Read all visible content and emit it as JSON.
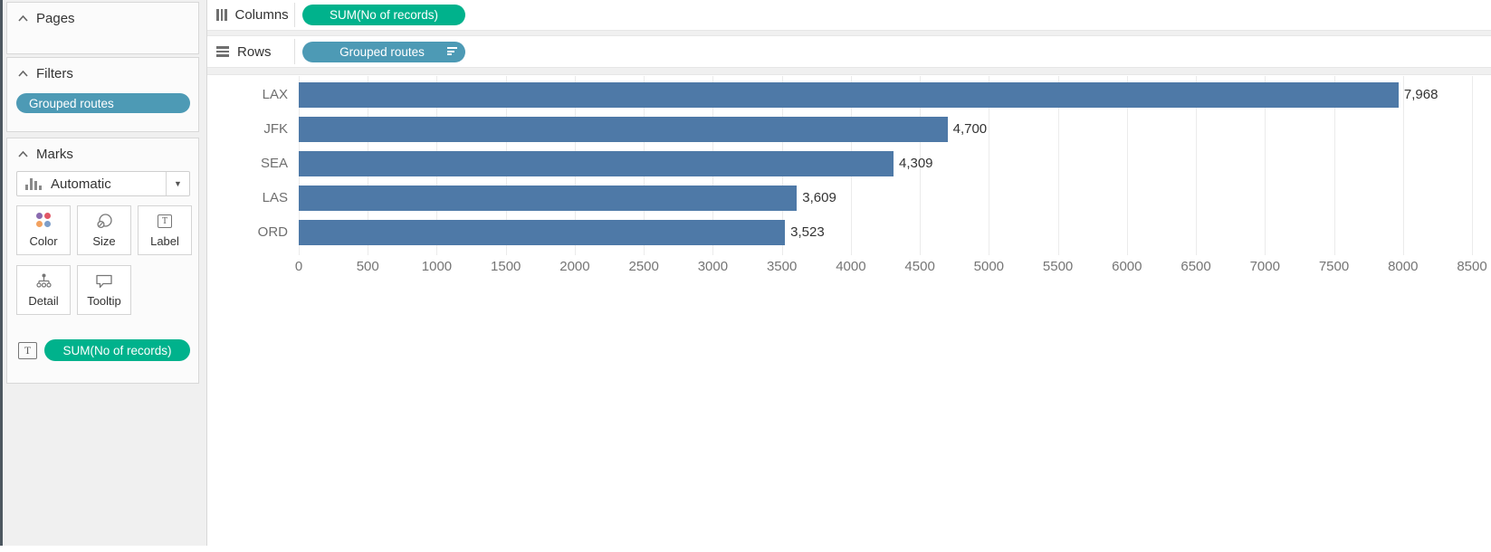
{
  "sidebar": {
    "pages": {
      "title": "Pages"
    },
    "filters": {
      "title": "Filters",
      "pill": "Grouped routes"
    },
    "marks": {
      "title": "Marks",
      "type_selector": "Automatic",
      "buttons_row1": [
        "Color",
        "Size",
        "Label"
      ],
      "buttons_row2": [
        "Detail",
        "Tooltip"
      ],
      "encoding_pill": "SUM(No of records)"
    }
  },
  "shelves": {
    "columns_label": "Columns",
    "columns_pill": "SUM(No of records)",
    "rows_label": "Rows",
    "rows_pill": "Grouped routes"
  },
  "chart_data": {
    "type": "bar",
    "orientation": "horizontal",
    "categories": [
      "LAX",
      "JFK",
      "SEA",
      "LAS",
      "ORD"
    ],
    "values": [
      7968,
      4700,
      4309,
      3609,
      3523
    ],
    "value_labels": [
      "7,968",
      "4,700",
      "4,309",
      "3,609",
      "3,523"
    ],
    "xlim": [
      0,
      8500
    ],
    "x_ticks": [
      0,
      500,
      1000,
      1500,
      2000,
      2500,
      3000,
      3500,
      4000,
      4500,
      5000,
      5500,
      6000,
      6500,
      7000,
      7500,
      8000,
      8500
    ],
    "grid": true,
    "sort": "descending",
    "bar_color": "#4e79a7"
  },
  "colors": {
    "measure_pill": "#00b28c",
    "dimension_pill": "#4d9ab5",
    "bar": "#4e79a7"
  }
}
